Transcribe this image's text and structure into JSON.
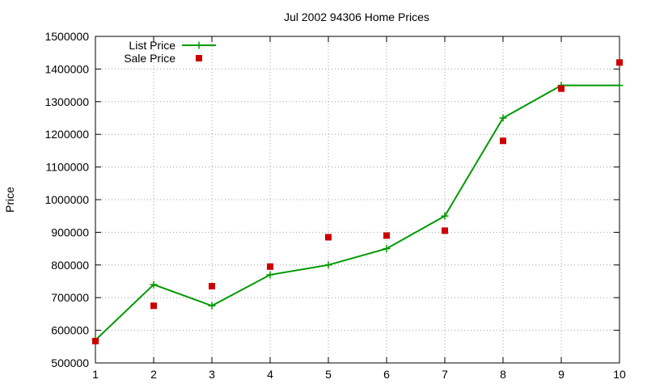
{
  "chart_data": {
    "type": "line",
    "title": "Jul 2002 94306 Home Prices",
    "xlabel": "",
    "ylabel": "Price",
    "xlim": [
      1,
      10
    ],
    "ylim": [
      500000,
      1500000
    ],
    "x_ticks": [
      "1",
      "2",
      "3",
      "4",
      "5",
      "6",
      "7",
      "8",
      "9",
      "10"
    ],
    "y_ticks": [
      "500000",
      "600000",
      "700000",
      "800000",
      "900000",
      "1000000",
      "1100000",
      "1200000",
      "1300000",
      "1400000",
      "1500000"
    ],
    "grid": true,
    "legend_position": "top-left",
    "series": [
      {
        "name": "List Price",
        "style": "line-points",
        "color": "#009900",
        "x": [
          1,
          2,
          3,
          4,
          5,
          6,
          7,
          8,
          9,
          10
        ],
        "y": [
          570000,
          740000,
          675000,
          770000,
          800000,
          850000,
          950000,
          1250000,
          1350000,
          1350000
        ]
      },
      {
        "name": "Sale Price",
        "style": "points",
        "color": "#cc0000",
        "x": [
          1,
          2,
          3,
          4,
          5,
          6,
          7,
          8,
          9,
          10
        ],
        "y": [
          567000,
          675000,
          735000,
          795000,
          885000,
          890000,
          905000,
          1180000,
          1340000,
          1420000
        ]
      }
    ]
  }
}
